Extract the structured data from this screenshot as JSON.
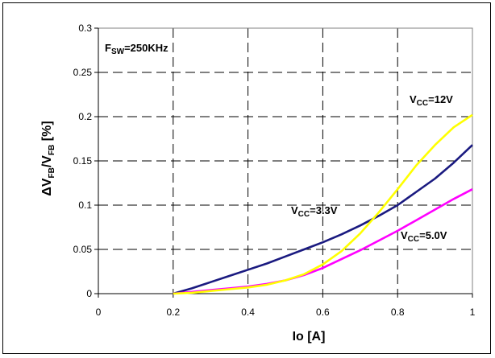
{
  "chart_data": {
    "type": "line",
    "xlabel": "Io [A]",
    "ylabel_parts": {
      "delta": "Δ",
      "v1": "V",
      "s1": "FB",
      "slash": "/",
      "v2": "V",
      "s2": "FB",
      "unit": " [%]"
    },
    "xlim": [
      0,
      1
    ],
    "ylim": [
      0,
      0.3
    ],
    "x_ticks": [
      "0",
      "0.2",
      "0.4",
      "0.6",
      "0.8",
      "1"
    ],
    "y_ticks": [
      "0",
      "0.05",
      "0.1",
      "0.15",
      "0.2",
      "0.25",
      "0.3"
    ],
    "grid": true,
    "annotations": {
      "fsw": {
        "main": "F",
        "sub": "SW",
        "rest": "=250KHz"
      },
      "vcc12": {
        "main": "V",
        "sub": "CC",
        "rest": "=12V"
      },
      "vcc33": {
        "main": "V",
        "sub": "CC",
        "rest": "=3.3V"
      },
      "vcc50": {
        "main": "V",
        "sub": "CC",
        "rest": "=5.0V"
      }
    },
    "series": [
      {
        "color": "#1a1a80",
        "x": [
          0.2,
          0.25,
          0.3,
          0.35,
          0.4,
          0.45,
          0.5,
          0.55,
          0.6,
          0.65,
          0.7,
          0.75,
          0.8,
          0.85,
          0.9,
          0.95,
          1.0
        ],
        "y": [
          0.0,
          0.006,
          0.013,
          0.02,
          0.027,
          0.034,
          0.042,
          0.05,
          0.058,
          0.067,
          0.077,
          0.088,
          0.1,
          0.115,
          0.13,
          0.148,
          0.168
        ]
      },
      {
        "color": "#ff00ff",
        "x": [
          0.2,
          0.25,
          0.3,
          0.35,
          0.4,
          0.45,
          0.5,
          0.55,
          0.6,
          0.65,
          0.7,
          0.75,
          0.8,
          0.85,
          0.9,
          0.95,
          1.0
        ],
        "y": [
          0.0,
          0.002,
          0.004,
          0.006,
          0.008,
          0.011,
          0.015,
          0.021,
          0.029,
          0.039,
          0.049,
          0.06,
          0.071,
          0.083,
          0.095,
          0.107,
          0.118
        ]
      },
      {
        "color": "#ffff00",
        "x": [
          0.2,
          0.25,
          0.3,
          0.35,
          0.4,
          0.45,
          0.5,
          0.55,
          0.6,
          0.65,
          0.7,
          0.75,
          0.8,
          0.85,
          0.9,
          0.95,
          1.0
        ],
        "y": [
          0.0,
          0.001,
          0.003,
          0.005,
          0.007,
          0.01,
          0.015,
          0.022,
          0.033,
          0.048,
          0.068,
          0.092,
          0.118,
          0.145,
          0.168,
          0.188,
          0.202
        ]
      }
    ]
  }
}
